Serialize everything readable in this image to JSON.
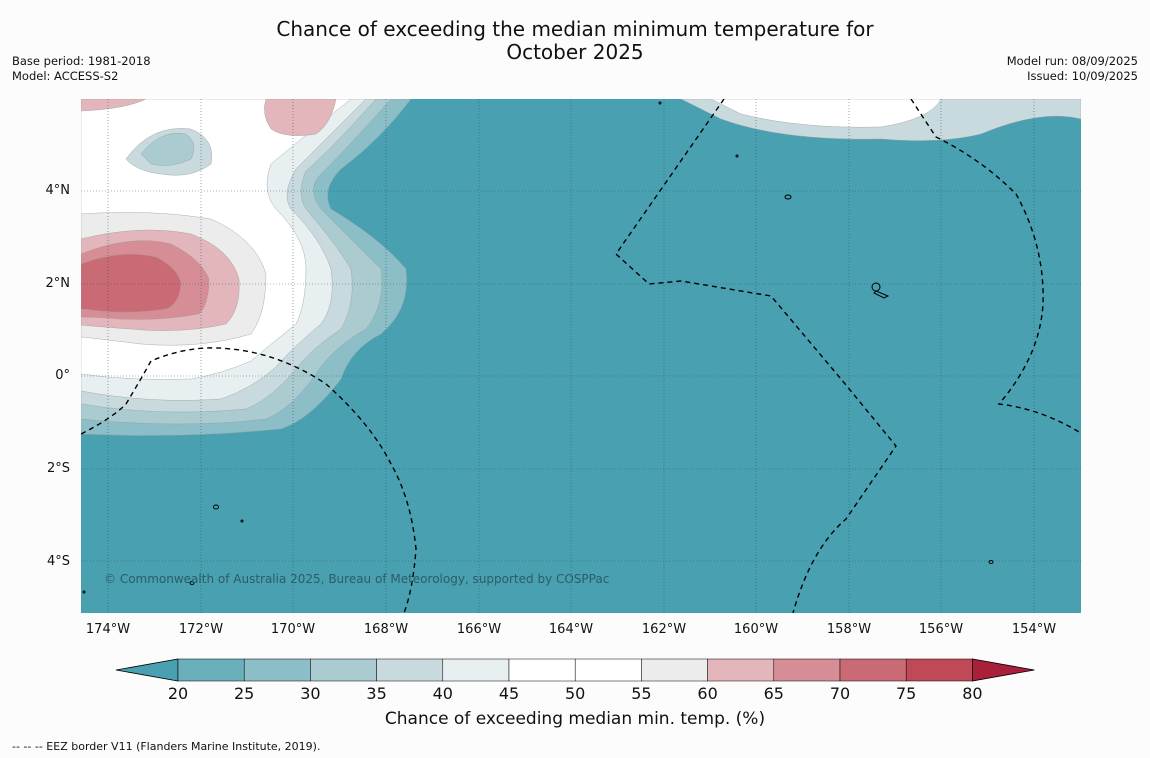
{
  "header": {
    "title_line1": "Chance of exceeding the median minimum temperature for",
    "title_line2": "October 2025",
    "base_period": "Base period: 1981-2018",
    "model": "Model: ACCESS-S2",
    "model_run": "Model run: 08/09/2025",
    "issued": "Issued: 10/09/2025"
  },
  "map": {
    "y_ticks": [
      "4°N",
      "2°N",
      "0°",
      "2°S",
      "4°S"
    ],
    "x_ticks": [
      "174°W",
      "172°W",
      "170°W",
      "168°W",
      "166°W",
      "164°W",
      "162°W",
      "160°W",
      "158°W",
      "156°W",
      "154°W"
    ],
    "copyright": "© Commonwealth of Australia 2025, Bureau of Meteorology, supported by COSPPac",
    "background_color": "#49a0b0",
    "eez_line_style": "dashed"
  },
  "colorbar": {
    "ticks": [
      "20",
      "25",
      "30",
      "35",
      "40",
      "45",
      "50",
      "55",
      "60",
      "65",
      "70",
      "75",
      "80"
    ],
    "colors": [
      "#49a0b0",
      "#6aafbc",
      "#8bbec7",
      "#aacbd0",
      "#c8dadd",
      "#e7eff1",
      "#ffffff",
      "#ffffff",
      "#ececec",
      "#e2b6bb",
      "#d68d95",
      "#c96a74",
      "#bf4957",
      "#a8203a"
    ],
    "title": "Chance of exceeding median min. temp. (%)"
  },
  "footnote": "--  --  -- EEZ border V11 (Flanders Marine Institute, 2019)."
}
